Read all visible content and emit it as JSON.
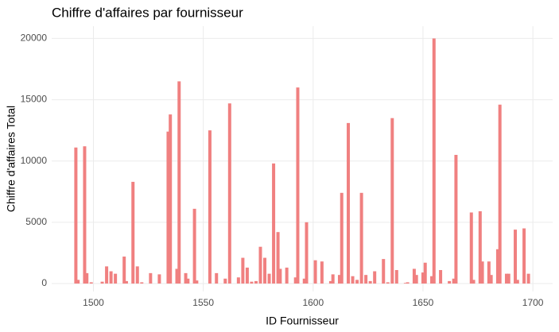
{
  "chart_data": {
    "type": "bar",
    "title": "Chiffre d'affaires par fournisseur",
    "xlabel": "ID Fournisseur",
    "ylabel": "Chiffre d'affaires Total",
    "color": "#f08080",
    "grid": true,
    "x": [
      1492,
      1493,
      1496,
      1497,
      1499,
      1504,
      1506,
      1508,
      1510,
      1514,
      1515,
      1518,
      1520,
      1522,
      1526,
      1530,
      1534,
      1535,
      1538,
      1539,
      1542,
      1543,
      1546,
      1547,
      1553,
      1556,
      1560,
      1562,
      1566,
      1568,
      1570,
      1572,
      1574,
      1576,
      1578,
      1580,
      1582,
      1584,
      1585,
      1588,
      1592,
      1593,
      1596,
      1597,
      1601,
      1604,
      1608,
      1609,
      1612,
      1613,
      1616,
      1618,
      1620,
      1622,
      1624,
      1626,
      1628,
      1632,
      1634,
      1636,
      1638,
      1642,
      1643,
      1646,
      1647,
      1650,
      1651,
      1654,
      1655,
      1658,
      1662,
      1664,
      1665,
      1672,
      1673,
      1676,
      1677,
      1680,
      1681,
      1684,
      1685,
      1688,
      1689,
      1692,
      1693,
      1696,
      1698
    ],
    "values": [
      11100,
      300,
      11200,
      850,
      100,
      150,
      1400,
      1000,
      800,
      2200,
      200,
      8300,
      1400,
      100,
      850,
      750,
      12400,
      13800,
      1200,
      16500,
      850,
      400,
      6100,
      250,
      12500,
      850,
      400,
      14700,
      500,
      2100,
      1300,
      150,
      200,
      3000,
      2100,
      800,
      9800,
      4200,
      1200,
      1300,
      500,
      16000,
      400,
      5000,
      1900,
      1800,
      200,
      750,
      700,
      7400,
      13100,
      600,
      300,
      7400,
      700,
      200,
      1000,
      2000,
      100,
      13500,
      1100,
      50,
      100,
      1200,
      700,
      900,
      1700,
      600,
      20000,
      1100,
      200,
      400,
      10500,
      5800,
      300,
      5900,
      1800,
      1800,
      700,
      2800,
      14600,
      800,
      800,
      4400,
      300,
      4500,
      800
    ],
    "xlim": [
      1481,
      1709
    ],
    "xticks": [
      1500,
      1550,
      1600,
      1650,
      1700
    ],
    "ylim": [
      -650,
      21000
    ],
    "yticks": [
      0,
      5000,
      10000,
      15000,
      20000
    ]
  }
}
